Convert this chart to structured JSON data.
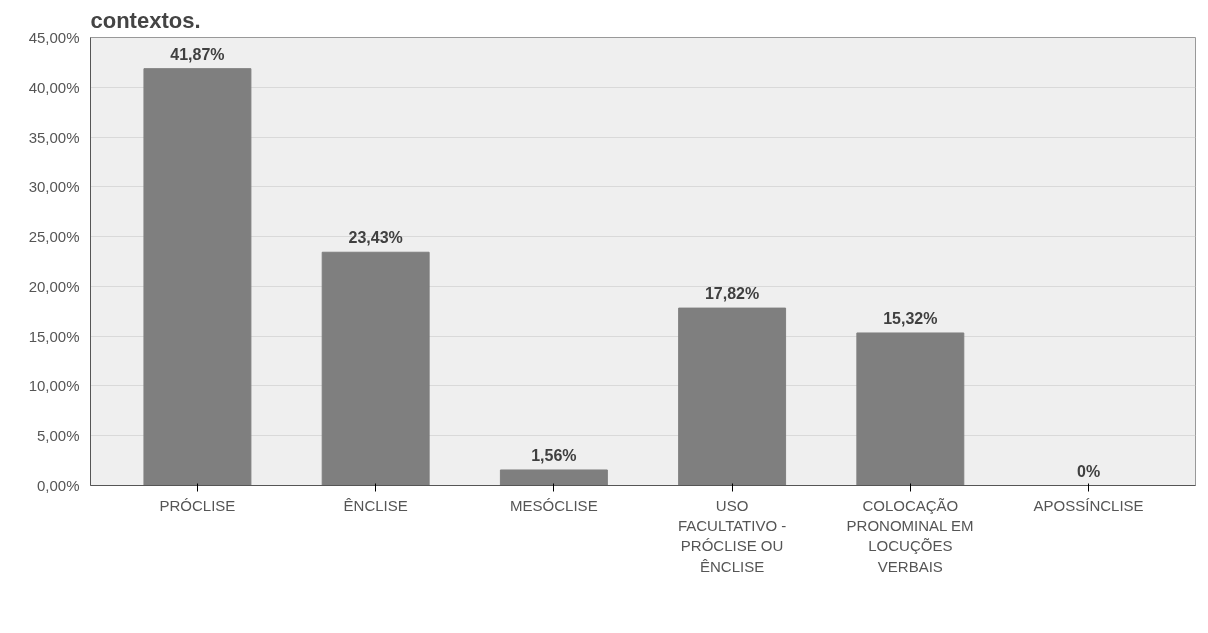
{
  "chart_data": {
    "type": "bar",
    "title": "contextos.",
    "categories": [
      "PRÓCLISE",
      "ÊNCLISE",
      "MESÓCLISE",
      "USO FACULTATIVO - PRÓCLISE OU ÊNCLISE",
      "COLOCAÇÃO PRONOMINAL EM LOCUÇÕES VERBAIS",
      "APOSSÍNCLISE"
    ],
    "values": [
      41.87,
      23.43,
      1.56,
      17.82,
      15.32,
      0
    ],
    "value_labels": [
      "41,87%",
      "23,43%",
      "1,56%",
      "17,82%",
      "15,32%",
      "0%"
    ],
    "color": "#7f7f7f",
    "ylim": [
      0,
      45
    ],
    "yticks": [
      {
        "value": 0,
        "label": "0,00%"
      },
      {
        "value": 5,
        "label": "5,00%"
      },
      {
        "value": 10,
        "label": "10,00%"
      },
      {
        "value": 15,
        "label": "15,00%"
      },
      {
        "value": 20,
        "label": "20,00%"
      },
      {
        "value": 25,
        "label": "25,00%"
      },
      {
        "value": 30,
        "label": "30,00%"
      },
      {
        "value": 35,
        "label": "35,00%"
      },
      {
        "value": 40,
        "label": "40,00%"
      },
      {
        "value": 45,
        "label": "45,00%"
      }
    ],
    "grid": "y"
  }
}
